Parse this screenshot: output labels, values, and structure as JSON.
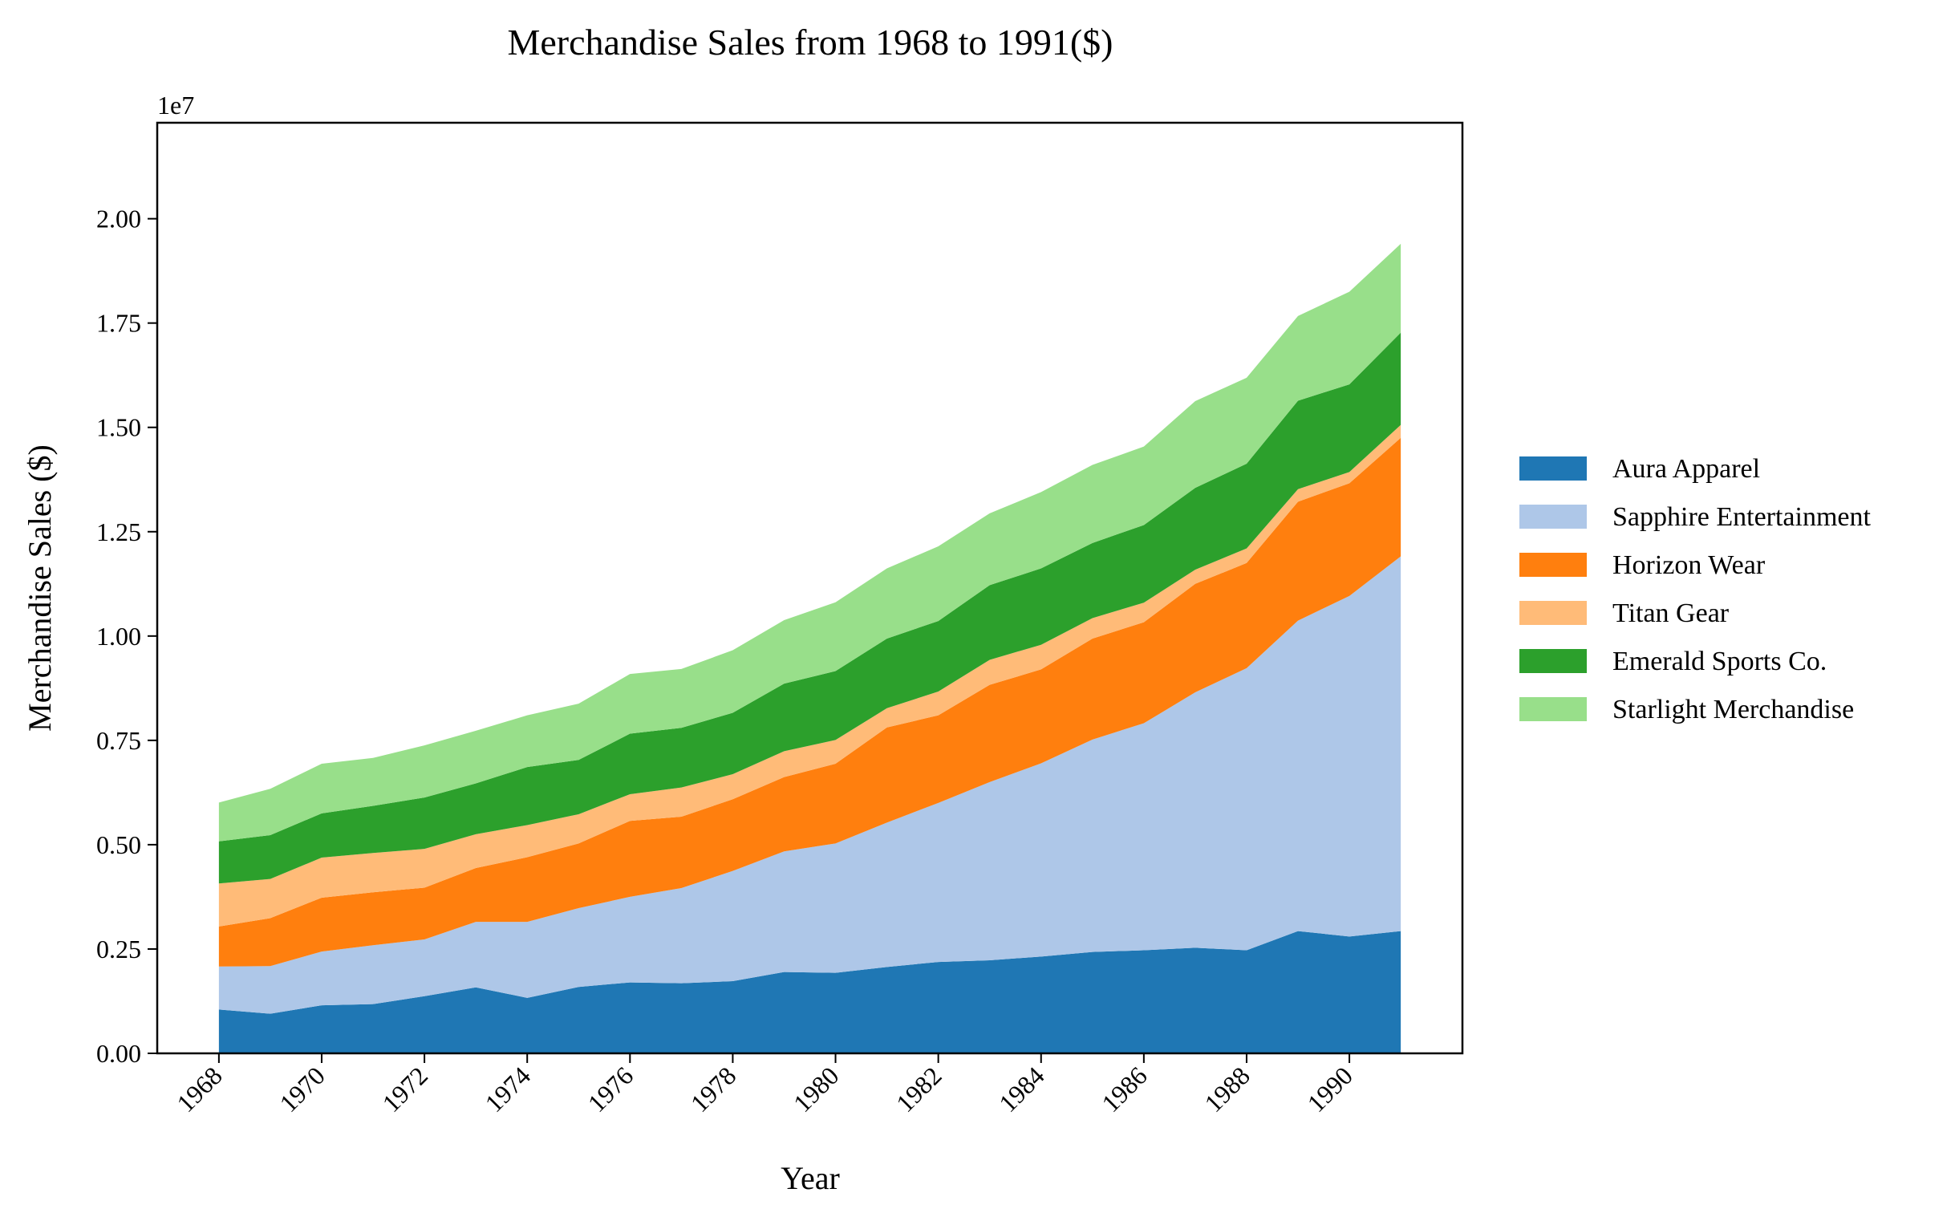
{
  "chart_data": {
    "type": "area",
    "stacked": true,
    "title": "Merchandise Sales from 1968 to 1991($)",
    "xlabel": "Year",
    "ylabel": "Merchandise Sales ($)",
    "y_multiplier_label": "1e7",
    "xlim": [
      1966.8,
      1992.2
    ],
    "ylim": [
      0,
      22300000
    ],
    "x": [
      1968,
      1969,
      1970,
      1971,
      1972,
      1973,
      1974,
      1975,
      1976,
      1977,
      1978,
      1979,
      1980,
      1981,
      1982,
      1983,
      1984,
      1985,
      1986,
      1987,
      1988,
      1989,
      1990,
      1991
    ],
    "x_ticks": [
      1968,
      1970,
      1972,
      1974,
      1976,
      1978,
      1980,
      1982,
      1984,
      1986,
      1988,
      1990
    ],
    "x_tick_labels": [
      "1968",
      "1970",
      "1972",
      "1974",
      "1976",
      "1978",
      "1980",
      "1982",
      "1984",
      "1986",
      "1988",
      "1990"
    ],
    "y_ticks": [
      0,
      2500000,
      5000000,
      7500000,
      10000000,
      12500000,
      15000000,
      17500000,
      20000000
    ],
    "y_tick_labels": [
      "0.00",
      "0.25",
      "0.50",
      "0.75",
      "1.00",
      "1.25",
      "1.50",
      "1.75",
      "2.00"
    ],
    "grid": false,
    "legend_position": "right",
    "series": [
      {
        "name": "Aura Apparel",
        "color": "#1f77b4",
        "values": [
          1050000,
          950000,
          1150000,
          1180000,
          1370000,
          1580000,
          1330000,
          1590000,
          1700000,
          1680000,
          1730000,
          1950000,
          1930000,
          2070000,
          2190000,
          2230000,
          2320000,
          2430000,
          2470000,
          2530000,
          2470000,
          2930000,
          2800000,
          2930000
        ]
      },
      {
        "name": "Sapphire Entertainment",
        "color": "#aec7e8",
        "values": [
          1030000,
          1140000,
          1290000,
          1410000,
          1360000,
          1570000,
          1820000,
          1890000,
          2050000,
          2280000,
          2640000,
          2890000,
          3100000,
          3460000,
          3810000,
          4270000,
          4630000,
          5090000,
          5440000,
          6120000,
          6760000,
          7440000,
          8160000,
          8980000
        ]
      },
      {
        "name": "Horizon Wear",
        "color": "#ff7f0e",
        "values": [
          960000,
          1150000,
          1290000,
          1270000,
          1240000,
          1290000,
          1550000,
          1550000,
          1820000,
          1710000,
          1720000,
          1780000,
          1910000,
          2280000,
          2100000,
          2330000,
          2250000,
          2420000,
          2420000,
          2600000,
          2520000,
          2850000,
          2700000,
          2840000
        ]
      },
      {
        "name": "Titan Gear",
        "color": "#ffbb78",
        "values": [
          1030000,
          940000,
          960000,
          940000,
          930000,
          810000,
          770000,
          700000,
          640000,
          700000,
          600000,
          620000,
          570000,
          460000,
          570000,
          600000,
          590000,
          490000,
          470000,
          340000,
          350000,
          300000,
          270000,
          310000
        ]
      },
      {
        "name": "Emerald Sports Co.",
        "color": "#2ca02c",
        "values": [
          1010000,
          1050000,
          1060000,
          1130000,
          1230000,
          1220000,
          1390000,
          1300000,
          1450000,
          1430000,
          1470000,
          1620000,
          1650000,
          1670000,
          1690000,
          1790000,
          1830000,
          1800000,
          1860000,
          1960000,
          2030000,
          2120000,
          2100000,
          2210000
        ]
      },
      {
        "name": "Starlight Merchandise",
        "color": "#98df8a",
        "values": [
          930000,
          1110000,
          1190000,
          1150000,
          1250000,
          1260000,
          1240000,
          1350000,
          1430000,
          1410000,
          1500000,
          1520000,
          1650000,
          1680000,
          1790000,
          1720000,
          1830000,
          1870000,
          1880000,
          2080000,
          2060000,
          2030000,
          2220000,
          2130000
        ]
      }
    ]
  }
}
